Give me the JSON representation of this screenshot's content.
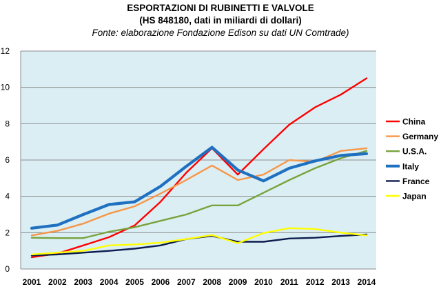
{
  "chart_data": {
    "type": "line",
    "title": "ESPORTAZIONI DI RUBINETTI E VALVOLE",
    "subtitle": "(HS 848180, dati in miliardi di dollari)",
    "source": "Fonte: elaborazione Fondazione Edison su dati UN Comtrade)",
    "xlabel": "",
    "ylabel": "",
    "x": [
      "2001",
      "2002",
      "2003",
      "2004",
      "2005",
      "2006",
      "2007",
      "2008",
      "2009",
      "2010",
      "2011",
      "2012",
      "2013",
      "2014"
    ],
    "ylim": [
      0,
      12
    ],
    "yticks": [
      0,
      2,
      4,
      6,
      8,
      10,
      12
    ],
    "grid": true,
    "legend": "right",
    "plot_background": "#dbeef4",
    "series": [
      {
        "name": "China",
        "color": "#ff0000",
        "width": 2.4,
        "values": [
          0.65,
          0.85,
          1.3,
          1.75,
          2.4,
          3.7,
          5.3,
          6.65,
          5.2,
          6.6,
          7.95,
          8.9,
          9.6,
          10.5
        ]
      },
      {
        "name": "Germany",
        "color": "#f79646",
        "width": 2.4,
        "values": [
          1.85,
          2.1,
          2.5,
          3.05,
          3.45,
          4.15,
          4.9,
          5.7,
          4.9,
          5.2,
          6.0,
          5.9,
          6.5,
          6.65
        ]
      },
      {
        "name": "U.S.A.",
        "color": "#77a33b",
        "width": 2.4,
        "values": [
          1.72,
          1.7,
          1.7,
          2.05,
          2.3,
          2.65,
          3.0,
          3.5,
          3.5,
          4.2,
          4.9,
          5.55,
          6.1,
          6.5
        ]
      },
      {
        "name": "Italy",
        "color": "#1f70c1",
        "width": 4.2,
        "values": [
          2.25,
          2.42,
          3.0,
          3.55,
          3.7,
          4.55,
          5.65,
          6.7,
          5.45,
          4.85,
          5.55,
          5.95,
          6.25,
          6.35
        ]
      },
      {
        "name": "France",
        "color": "#0c1b4d",
        "width": 2.4,
        "values": [
          0.75,
          0.8,
          0.9,
          1.0,
          1.12,
          1.3,
          1.65,
          1.82,
          1.5,
          1.5,
          1.68,
          1.72,
          1.82,
          1.9
        ]
      },
      {
        "name": "Japan",
        "color": "#ffff00",
        "width": 2.4,
        "values": [
          0.8,
          0.9,
          1.0,
          1.3,
          1.35,
          1.45,
          1.65,
          1.87,
          1.42,
          1.98,
          2.25,
          2.2,
          2.0,
          1.85
        ]
      }
    ]
  }
}
